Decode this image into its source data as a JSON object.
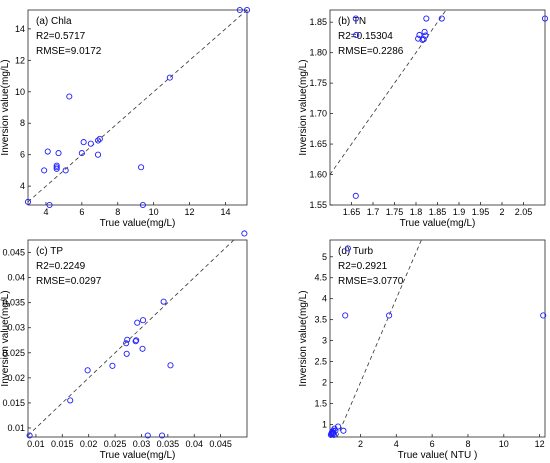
{
  "chart_data": [
    {
      "type": "scatter",
      "ylabel": "Inversion value(mg/L)",
      "xlabel": "True value(mg/L)",
      "annotations": [
        "(a) Chla",
        "R2=0.5717",
        "RMSE=9.0172"
      ],
      "xlim": [
        3,
        15.2
      ],
      "ylim": [
        2.8,
        15.2
      ],
      "xticks": [
        4,
        6,
        8,
        10,
        12,
        14
      ],
      "yticks": [
        4,
        6,
        8,
        10,
        12,
        14
      ],
      "grid": false,
      "marker_color": "#1f1fff",
      "reference_line": "1:1 dashed",
      "points": [
        [
          3.0,
          3.0
        ],
        [
          3.9,
          5.0
        ],
        [
          4.1,
          6.2
        ],
        [
          4.2,
          2.8
        ],
        [
          4.6,
          5.1
        ],
        [
          4.6,
          5.2
        ],
        [
          4.6,
          5.3
        ],
        [
          4.7,
          6.1
        ],
        [
          5.1,
          5.0
        ],
        [
          5.3,
          9.7
        ],
        [
          6.0,
          6.1
        ],
        [
          6.1,
          6.8
        ],
        [
          6.5,
          6.7
        ],
        [
          6.9,
          6.0
        ],
        [
          6.9,
          6.9
        ],
        [
          7.0,
          7.0
        ],
        [
          9.3,
          5.2
        ],
        [
          9.4,
          2.8
        ],
        [
          10.9,
          10.9
        ],
        [
          14.8,
          15.2
        ],
        [
          15.2,
          15.2
        ]
      ]
    },
    {
      "type": "scatter",
      "ylabel": "Inversion value(mg/L)",
      "xlabel": "True value(mg/L)",
      "annotations": [
        "(b) TN",
        "R2=0.15304",
        "RMSE=0.2286"
      ],
      "xlim": [
        1.6,
        2.1
      ],
      "ylim": [
        1.55,
        1.87
      ],
      "xticks": [
        1.65,
        1.7,
        1.75,
        1.8,
        1.85,
        1.9,
        1.95,
        2,
        2.05
      ],
      "yticks": [
        1.55,
        1.6,
        1.65,
        1.7,
        1.75,
        1.8,
        1.85
      ],
      "grid": false,
      "marker_color": "#1f1fff",
      "reference_line": "1:1 dashed",
      "points": [
        [
          1.66,
          1.856
        ],
        [
          1.661,
          1.829
        ],
        [
          1.66,
          1.565
        ],
        [
          1.805,
          1.823
        ],
        [
          1.808,
          1.829
        ],
        [
          1.815,
          1.821
        ],
        [
          1.818,
          1.822
        ],
        [
          1.82,
          1.834
        ],
        [
          1.822,
          1.828
        ],
        [
          1.824,
          1.856
        ],
        [
          1.86,
          1.856
        ],
        [
          2.1,
          1.856
        ]
      ]
    },
    {
      "type": "scatter",
      "ylabel": "Inversion value(mg/L)",
      "xlabel": "True value(mg/L)",
      "annotations": [
        "(c) TP",
        "R2=0.2249",
        "RMSE=0.0297"
      ],
      "xlim": [
        0.0085,
        0.05
      ],
      "ylim": [
        0.0082,
        0.0475
      ],
      "xticks": [
        0.01,
        0.015,
        0.02,
        0.025,
        0.03,
        0.035,
        0.04,
        0.045
      ],
      "yticks": [
        0.01,
        0.015,
        0.02,
        0.025,
        0.03,
        0.035,
        0.04,
        0.045
      ],
      "grid": false,
      "marker_color": "#1f1fff",
      "reference_line": "1:1 dashed",
      "points": [
        [
          0.0088,
          0.0085
        ],
        [
          0.0165,
          0.0155
        ],
        [
          0.0198,
          0.0215
        ],
        [
          0.0245,
          0.0224
        ],
        [
          0.0271,
          0.0269
        ],
        [
          0.0272,
          0.0248
        ],
        [
          0.0273,
          0.0276
        ],
        [
          0.0289,
          0.0273
        ],
        [
          0.029,
          0.0275
        ],
        [
          0.0292,
          0.031
        ],
        [
          0.0302,
          0.0258
        ],
        [
          0.0303,
          0.0315
        ],
        [
          0.0312,
          0.0085
        ],
        [
          0.0339,
          0.0085
        ],
        [
          0.0342,
          0.0352
        ],
        [
          0.0355,
          0.0225
        ],
        [
          0.0495,
          0.0488
        ]
      ]
    },
    {
      "type": "scatter",
      "ylabel": "Inversion value(mg/L)",
      "xlabel": "True value( NTU )",
      "annotations": [
        "(d) Turb",
        "R2=0.2921",
        "RMSE=3.0770"
      ],
      "xlim": [
        0.3,
        12.3
      ],
      "ylim": [
        0.7,
        5.4
      ],
      "xticks": [
        2,
        4,
        6,
        8,
        10,
        12
      ],
      "yticks": [
        1,
        1.5,
        2,
        2.5,
        3,
        3.5,
        4,
        4.5,
        5
      ],
      "grid": false,
      "marker_color": "#1f1fff",
      "reference_line": "1:1 dashed",
      "points": [
        [
          0.35,
          0.75
        ],
        [
          0.38,
          0.78
        ],
        [
          0.4,
          0.8
        ],
        [
          0.42,
          0.82
        ],
        [
          0.45,
          0.77
        ],
        [
          0.48,
          0.85
        ],
        [
          0.5,
          0.8
        ],
        [
          0.52,
          0.75
        ],
        [
          0.55,
          0.9
        ],
        [
          0.6,
          0.85
        ],
        [
          0.75,
          0.95
        ],
        [
          1.05,
          0.85
        ],
        [
          1.15,
          3.6
        ],
        [
          1.3,
          5.2
        ],
        [
          3.6,
          3.6
        ],
        [
          12.2,
          3.6
        ]
      ]
    }
  ]
}
